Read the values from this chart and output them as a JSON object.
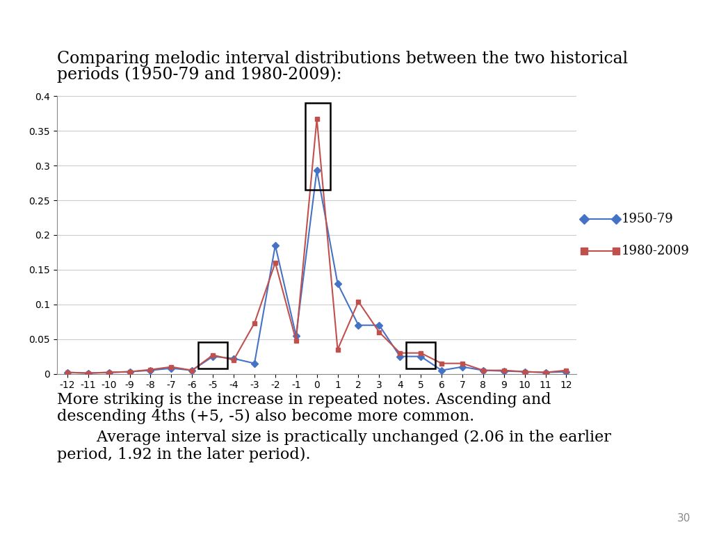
{
  "x": [
    -12,
    -11,
    -10,
    -9,
    -8,
    -7,
    -6,
    -5,
    -4,
    -3,
    -2,
    -1,
    0,
    1,
    2,
    3,
    4,
    5,
    6,
    7,
    8,
    9,
    10,
    11,
    12
  ],
  "series_1950": [
    0.002,
    0.001,
    0.002,
    0.003,
    0.005,
    0.008,
    0.005,
    0.025,
    0.022,
    0.015,
    0.185,
    0.055,
    0.293,
    0.13,
    0.07,
    0.07,
    0.025,
    0.025,
    0.005,
    0.01,
    0.005,
    0.004,
    0.003,
    0.002,
    0.003
  ],
  "series_1980": [
    0.002,
    0.001,
    0.002,
    0.003,
    0.006,
    0.01,
    0.005,
    0.027,
    0.02,
    0.073,
    0.16,
    0.048,
    0.367,
    0.035,
    0.104,
    0.06,
    0.03,
    0.03,
    0.015,
    0.015,
    0.005,
    0.005,
    0.003,
    0.002,
    0.005
  ],
  "color_1950": "#4472C4",
  "color_1980": "#C0504D",
  "label_1950": "1950-79",
  "label_1980": "1980-2009",
  "title_line1": "Comparing melodic interval distributions between the two historical",
  "title_line2": "periods (1950-79 and 1980-2009):",
  "ylim": [
    0,
    0.4
  ],
  "ytick_labels": [
    "0",
    "0.05",
    "0.1",
    "0.15",
    "0.2",
    "0.25",
    "0.3",
    "0.35",
    "0.4"
  ],
  "ytick_values": [
    0,
    0.05,
    0.1,
    0.15,
    0.2,
    0.25,
    0.3,
    0.35,
    0.4
  ],
  "annotation_line1": "More striking is the increase in repeated notes. Ascending and",
  "annotation_line2": "descending 4ths (+5, -5) also become more common.",
  "annotation_line3": "        Average interval size is practically unchanged (2.06 in the earlier",
  "annotation_line4": "period, 1.92 in the later period).",
  "page_number": "30",
  "bg_color": "#FFFFFF"
}
